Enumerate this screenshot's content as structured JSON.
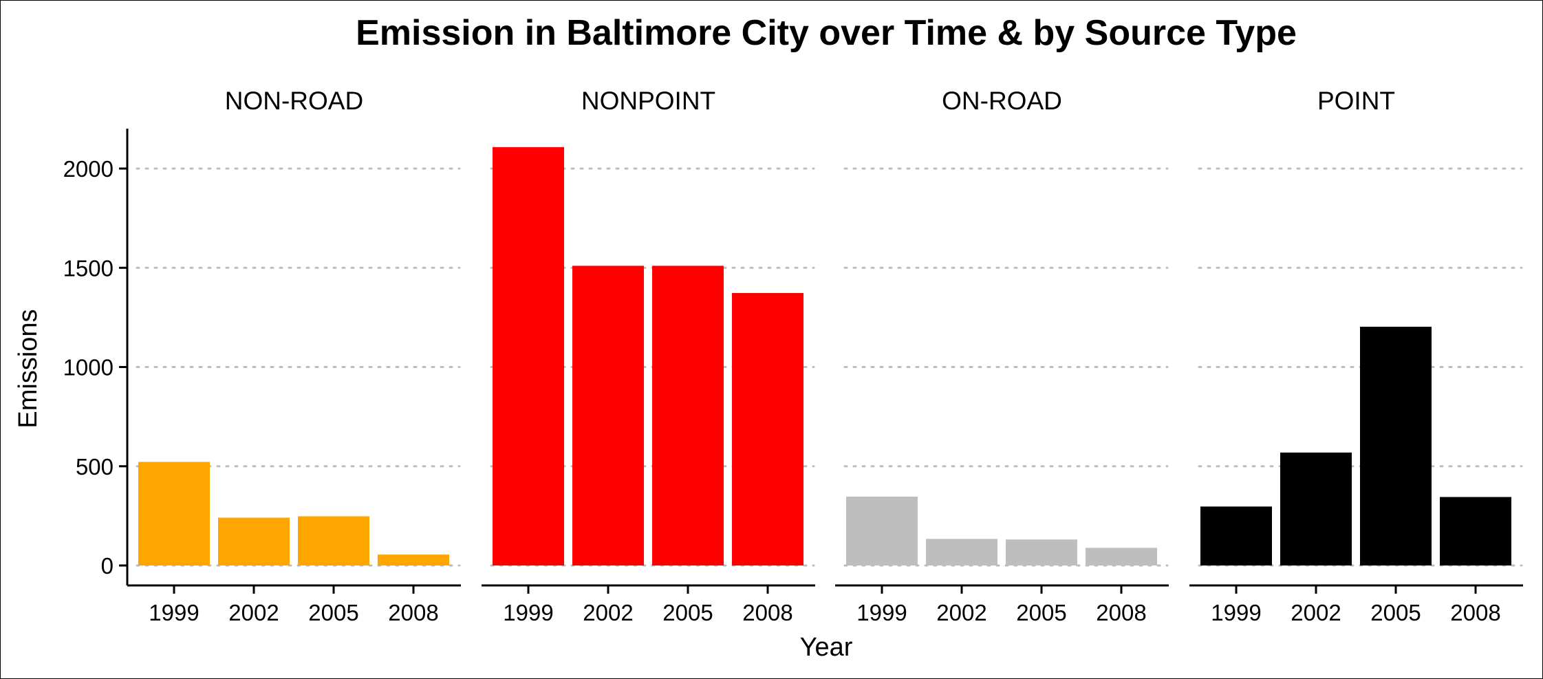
{
  "chart_data": {
    "type": "bar",
    "title": "Emission in Baltimore City over Time & by Source Type",
    "xlabel": "Year",
    "ylabel": "Emissions",
    "ylim": [
      0,
      2200
    ],
    "yticks": [
      0,
      500,
      1000,
      1500,
      2000
    ],
    "grid": "horizontal dotted",
    "legend": "none",
    "categories": [
      "1999",
      "2002",
      "2005",
      "2008"
    ],
    "facets": [
      {
        "name": "NON-ROAD",
        "color": "#FFA500",
        "values": [
          522,
          241,
          248,
          55
        ]
      },
      {
        "name": "NONPOINT",
        "color": "#FF0000",
        "values": [
          2108,
          1510,
          1510,
          1373
        ]
      },
      {
        "name": "ON-ROAD",
        "color": "#BEBEBE",
        "values": [
          347,
          134,
          131,
          89
        ]
      },
      {
        "name": "POINT",
        "color": "#000000",
        "values": [
          297,
          569,
          1203,
          345
        ]
      }
    ]
  }
}
